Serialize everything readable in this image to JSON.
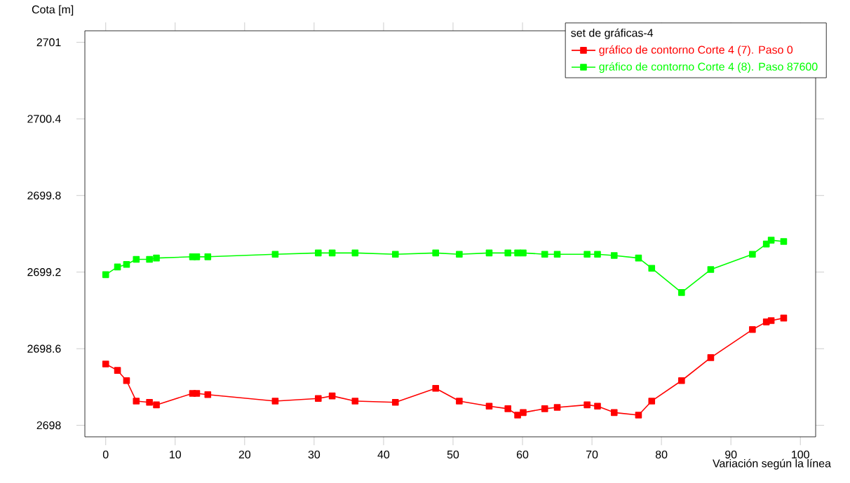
{
  "chart_data": {
    "type": "line",
    "xlabel": "Variación según la línea",
    "ylabel": "Cota [m]",
    "legend_title": "set de gráficas-4",
    "x": [
      0,
      1.7,
      3.0,
      4.4,
      6.3,
      7.3,
      12.5,
      13.1,
      14.7,
      24.4,
      30.6,
      32.6,
      35.9,
      41.7,
      47.5,
      50.9,
      55.2,
      57.9,
      59.3,
      60.1,
      63.2,
      65.0,
      69.3,
      70.8,
      73.2,
      76.7,
      78.6,
      82.9,
      87.1,
      93.1,
      95.1,
      95.8,
      97.6
    ],
    "series": [
      {
        "name": "gráfico de contorno Corte 4 (7). Paso 0",
        "color": "#ff0000",
        "values": [
          2698.48,
          2698.43,
          2698.35,
          2698.19,
          2698.18,
          2698.16,
          2698.25,
          2698.25,
          2698.24,
          2698.19,
          2698.21,
          2698.23,
          2698.19,
          2698.18,
          2698.29,
          2698.19,
          2698.15,
          2698.13,
          2698.08,
          2698.1,
          2698.13,
          2698.14,
          2698.16,
          2698.15,
          2698.1,
          2698.08,
          2698.19,
          2698.35,
          2698.53,
          2698.75,
          2698.81,
          2698.82,
          2698.84
        ]
      },
      {
        "name": "gráfico de contorno Corte 4 (8). Paso 87600",
        "color": "#00ff00",
        "values": [
          2699.18,
          2699.24,
          2699.26,
          2699.3,
          2699.3,
          2699.31,
          2699.32,
          2699.32,
          2699.32,
          2699.34,
          2699.35,
          2699.35,
          2699.35,
          2699.34,
          2699.35,
          2699.34,
          2699.35,
          2699.35,
          2699.35,
          2699.35,
          2699.34,
          2699.34,
          2699.34,
          2699.34,
          2699.33,
          2699.31,
          2699.23,
          2699.04,
          2699.22,
          2699.34,
          2699.42,
          2699.45,
          2699.44
        ]
      }
    ],
    "xlim": [
      -3,
      102.2
    ],
    "ylim": [
      2697.91,
      2701.09
    ],
    "xticks": [
      0,
      10,
      20,
      30,
      40,
      50,
      60,
      70,
      80,
      90,
      100
    ],
    "yticks": [
      2698,
      2698.6,
      2699.2,
      2699.8,
      2700.4,
      2701
    ],
    "tick_labels": "xy",
    "marker": "square",
    "line_style": "solid",
    "legend": "top right"
  }
}
